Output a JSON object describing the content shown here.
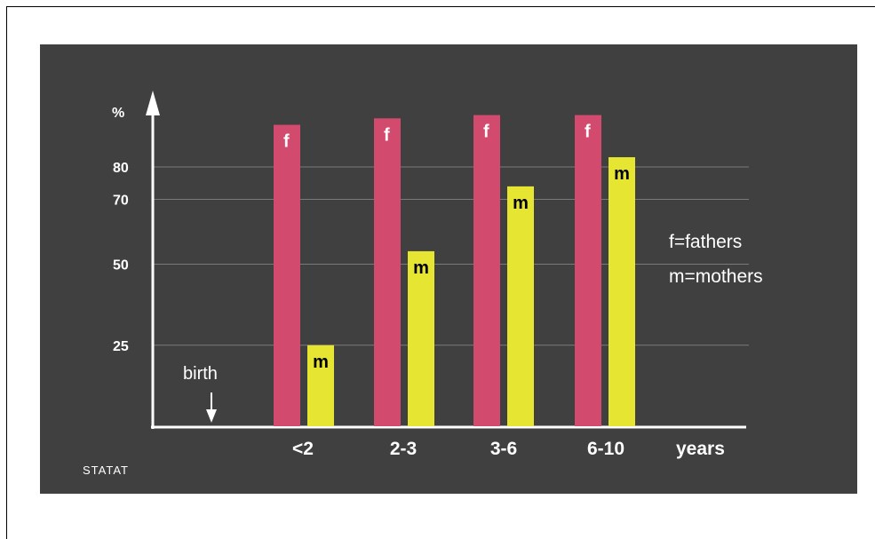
{
  "chart_data": {
    "type": "bar",
    "categories": [
      "<2",
      "2-3",
      "3-6",
      "6-10"
    ],
    "x_unit_label": "years",
    "y_unit_label": "%",
    "y_ticks": [
      25,
      50,
      70,
      80
    ],
    "ylim": [
      0,
      100
    ],
    "grid": true,
    "series": [
      {
        "id": "fathers",
        "bar_label": "f",
        "color": "#d24a6e",
        "values": [
          93,
          95,
          96,
          96
        ]
      },
      {
        "id": "mothers",
        "bar_label": "m",
        "color": "#e6e632",
        "values": [
          25,
          54,
          74,
          83
        ]
      }
    ],
    "legend": {
      "position": "right",
      "items": [
        "f=fathers",
        "m=mothers"
      ]
    },
    "annotation": {
      "text": "birth",
      "marker": "down-arrow-icon"
    },
    "credit": "STATAT"
  },
  "colors": {
    "background": "#404040",
    "grid": "#7a7a7a",
    "axis": "#ffffff"
  }
}
